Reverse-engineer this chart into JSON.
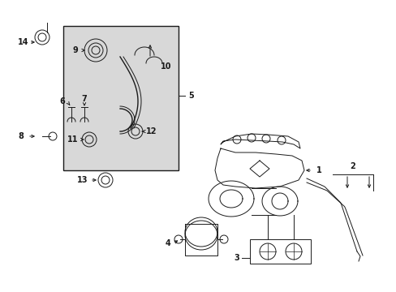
{
  "bg_color": "#ffffff",
  "inset_bg": "#d8d8d8",
  "line_color": "#1a1a1a",
  "fig_width": 4.89,
  "fig_height": 3.6,
  "dpi": 100
}
